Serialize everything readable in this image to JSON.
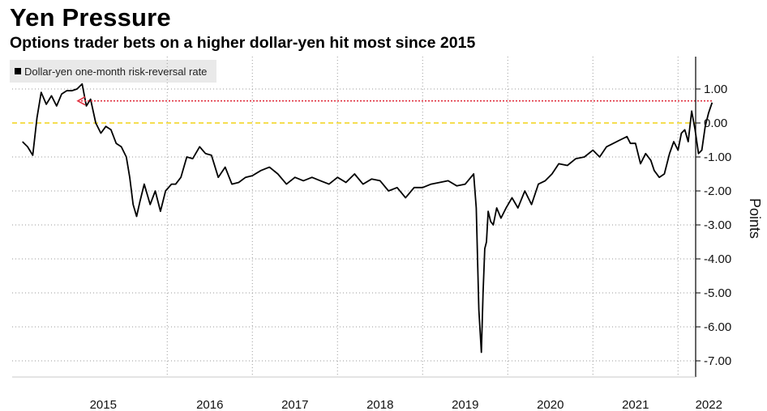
{
  "header": {
    "title": "Yen Pressure",
    "subtitle": "Options trader bets on a higher dollar-yen hit most since 2015"
  },
  "legend": {
    "label": "Dollar-yen one-month risk-reversal rate"
  },
  "colors": {
    "series": "#000000",
    "zero_line": "#f2d417",
    "reference_arrow": "#e0303f",
    "grid": "#9a9a9a",
    "legend_bg": "#e9e9e9"
  },
  "chart_data": {
    "type": "line",
    "title": "Yen Pressure",
    "subtitle": "Options trader bets on a higher dollar-yen hit most since 2015",
    "ylabel": "Points",
    "xlabel": "",
    "ylim": [
      -7.4,
      1.9
    ],
    "xlim": [
      2014.3,
      2022.62
    ],
    "yticks": [
      1.0,
      0.0,
      -1.0,
      -2.0,
      -3.0,
      -4.0,
      -5.0,
      -6.0,
      -7.0
    ],
    "ytick_labels": [
      "1.00",
      "0.00",
      "-1.00",
      "-2.00",
      "-3.00",
      "-4.00",
      "-5.00",
      "-6.00",
      "-7.00"
    ],
    "xtick_labels": [
      "2015",
      "2016",
      "2017",
      "2018",
      "2019",
      "2020",
      "2021",
      "2022"
    ],
    "year_boundaries": [
      2016,
      2017,
      2018,
      2019,
      2020,
      2021,
      2022
    ],
    "grid": true,
    "legend_position": "top-left",
    "series": [
      {
        "name": "Dollar-yen one-month risk-reversal rate",
        "x": [
          2014.3,
          2014.36,
          2014.42,
          2014.47,
          2014.52,
          2014.58,
          2014.64,
          2014.7,
          2014.76,
          2014.82,
          2014.88,
          2014.94,
          2015.0,
          2015.05,
          2015.1,
          2015.16,
          2015.22,
          2015.28,
          2015.34,
          2015.4,
          2015.46,
          2015.52,
          2015.56,
          2015.6,
          2015.64,
          2015.68,
          2015.73,
          2015.8,
          2015.86,
          2015.92,
          2015.98,
          2016.05,
          2016.1,
          2016.16,
          2016.23,
          2016.3,
          2016.38,
          2016.45,
          2016.52,
          2016.6,
          2016.68,
          2016.76,
          2016.84,
          2016.92,
          2017.0,
          2017.1,
          2017.2,
          2017.3,
          2017.4,
          2017.5,
          2017.6,
          2017.7,
          2017.8,
          2017.9,
          2018.0,
          2018.1,
          2018.2,
          2018.3,
          2018.4,
          2018.5,
          2018.6,
          2018.7,
          2018.8,
          2018.9,
          2019.0,
          2019.1,
          2019.2,
          2019.3,
          2019.4,
          2019.5,
          2019.6,
          2019.63,
          2019.66,
          2019.69,
          2019.71,
          2019.73,
          2019.75,
          2019.77,
          2019.8,
          2019.83,
          2019.87,
          2019.92,
          2019.98,
          2020.05,
          2020.12,
          2020.2,
          2020.28,
          2020.36,
          2020.44,
          2020.52,
          2020.6,
          2020.7,
          2020.8,
          2020.9,
          2021.0,
          2021.08,
          2021.16,
          2021.24,
          2021.32,
          2021.4,
          2021.44,
          2021.5,
          2021.56,
          2021.62,
          2021.68,
          2021.72,
          2021.78,
          2021.84,
          2021.9,
          2021.95,
          2022.0,
          2022.04,
          2022.08,
          2022.12,
          2022.16,
          2022.2,
          2022.24,
          2022.28,
          2022.32,
          2022.36,
          2022.4
        ],
        "y": [
          -0.55,
          -0.7,
          -0.95,
          0.15,
          0.9,
          0.55,
          0.8,
          0.5,
          0.85,
          0.95,
          0.95,
          1.0,
          1.15,
          0.5,
          0.7,
          0.0,
          -0.3,
          -0.1,
          -0.2,
          -0.6,
          -0.7,
          -1.0,
          -1.6,
          -2.4,
          -2.75,
          -2.3,
          -1.8,
          -2.4,
          -2.0,
          -2.6,
          -2.0,
          -1.8,
          -1.8,
          -1.6,
          -1.0,
          -1.05,
          -0.7,
          -0.9,
          -0.95,
          -1.6,
          -1.3,
          -1.8,
          -1.75,
          -1.6,
          -1.55,
          -1.4,
          -1.3,
          -1.5,
          -1.8,
          -1.6,
          -1.7,
          -1.6,
          -1.7,
          -1.8,
          -1.6,
          -1.75,
          -1.5,
          -1.8,
          -1.65,
          -1.7,
          -2.0,
          -1.9,
          -2.2,
          -1.9,
          -1.9,
          -1.8,
          -1.75,
          -1.7,
          -1.85,
          -1.8,
          -1.5,
          -2.5,
          -5.5,
          -6.75,
          -5.0,
          -3.7,
          -3.5,
          -2.6,
          -2.9,
          -3.0,
          -2.5,
          -2.8,
          -2.5,
          -2.2,
          -2.5,
          -2.0,
          -2.4,
          -1.8,
          -1.7,
          -1.5,
          -1.2,
          -1.25,
          -1.05,
          -1.0,
          -0.8,
          -1.0,
          -0.7,
          -0.6,
          -0.5,
          -0.4,
          -0.6,
          -0.6,
          -1.2,
          -0.9,
          -1.1,
          -1.4,
          -1.6,
          -1.5,
          -0.9,
          -0.55,
          -0.8,
          -0.3,
          -0.2,
          -0.55,
          0.35,
          -0.2,
          -0.9,
          -0.8,
          -0.1,
          0.3,
          0.6
        ]
      }
    ],
    "reference_level": 0.65,
    "reference_arrow_start_x": 2014.95
  }
}
